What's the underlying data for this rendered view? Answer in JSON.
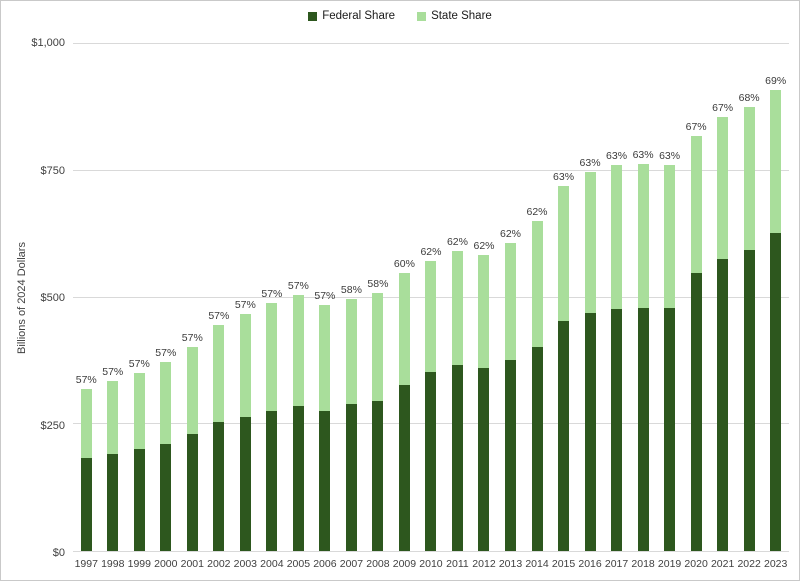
{
  "chart_data": {
    "type": "bar",
    "stacked": true,
    "title": "",
    "xlabel": "",
    "ylabel": "Billions of 2024 Dollars",
    "ylim": [
      0,
      1000
    ],
    "grid": true,
    "legend_position": "top",
    "yticks": [
      {
        "value": 0,
        "label": "$0"
      },
      {
        "value": 250,
        "label": "$250"
      },
      {
        "value": 500,
        "label": "$500"
      },
      {
        "value": 750,
        "label": "$750"
      },
      {
        "value": 1000,
        "label": "$1,000"
      }
    ],
    "categories": [
      "1997",
      "1998",
      "1999",
      "2000",
      "2001",
      "2002",
      "2003",
      "2004",
      "2005",
      "2006",
      "2007",
      "2008",
      "2009",
      "2010",
      "2011",
      "2012",
      "2013",
      "2014",
      "2015",
      "2016",
      "2017",
      "2018",
      "2019",
      "2020",
      "2021",
      "2022",
      "2023"
    ],
    "series": [
      {
        "name": "Federal Share",
        "color": "#2d571e",
        "values": [
          183,
          191,
          201,
          212,
          230,
          254,
          265,
          277,
          286,
          277,
          289,
          295,
          328,
          354,
          366,
          361,
          376,
          403,
          454,
          470,
          478,
          480,
          480,
          549,
          575,
          594,
          627
        ]
      },
      {
        "name": "State Share",
        "color": "#a9de9b",
        "values": [
          137,
          145,
          150,
          160,
          172,
          191,
          202,
          212,
          218,
          208,
          209,
          213,
          221,
          219,
          225,
          222,
          232,
          247,
          266,
          277,
          284,
          283,
          282,
          269,
          281,
          282,
          283
        ]
      }
    ],
    "bar_labels": [
      "57%",
      "57%",
      "57%",
      "57%",
      "57%",
      "57%",
      "57%",
      "57%",
      "57%",
      "57%",
      "58%",
      "58%",
      "60%",
      "62%",
      "62%",
      "62%",
      "62%",
      "62%",
      "63%",
      "63%",
      "63%",
      "63%",
      "63%",
      "67%",
      "67%",
      "68%",
      "69%"
    ]
  },
  "colors": {
    "gridline": "#d9d9d9",
    "axis_text": "#404040",
    "border": "#c9c9c9"
  }
}
